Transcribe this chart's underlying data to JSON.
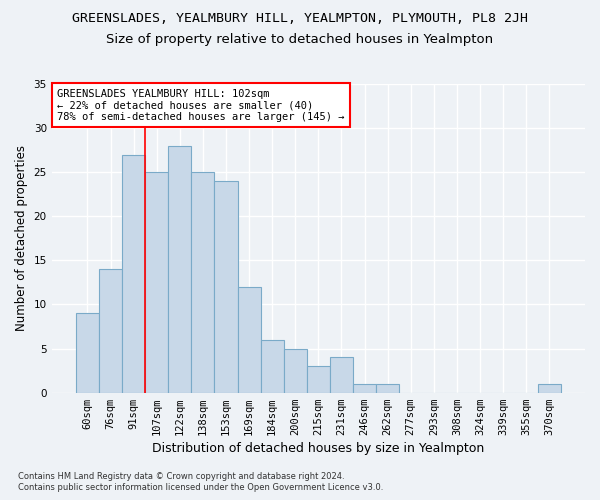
{
  "title": "GREENSLADES, YEALMBURY HILL, YEALMPTON, PLYMOUTH, PL8 2JH",
  "subtitle": "Size of property relative to detached houses in Yealmpton",
  "xlabel": "Distribution of detached houses by size in Yealmpton",
  "ylabel": "Number of detached properties",
  "bar_labels": [
    "60sqm",
    "76sqm",
    "91sqm",
    "107sqm",
    "122sqm",
    "138sqm",
    "153sqm",
    "169sqm",
    "184sqm",
    "200sqm",
    "215sqm",
    "231sqm",
    "246sqm",
    "262sqm",
    "277sqm",
    "293sqm",
    "308sqm",
    "324sqm",
    "339sqm",
    "355sqm",
    "370sqm"
  ],
  "bar_values": [
    9,
    14,
    27,
    25,
    28,
    25,
    24,
    12,
    6,
    5,
    3,
    4,
    1,
    1,
    0,
    0,
    0,
    0,
    0,
    0,
    1
  ],
  "bar_color": "#c8d8e8",
  "bar_edgecolor": "#7aaac8",
  "bar_linewidth": 0.8,
  "redline_x": 2.5,
  "annotation_text": "GREENSLADES YEALMBURY HILL: 102sqm\n← 22% of detached houses are smaller (40)\n78% of semi-detached houses are larger (145) →",
  "annotation_box_color": "white",
  "annotation_box_edgecolor": "red",
  "title_fontsize": 9.5,
  "subtitle_fontsize": 9.5,
  "xlabel_fontsize": 9,
  "ylabel_fontsize": 8.5,
  "tick_fontsize": 7.5,
  "annotation_fontsize": 7.5,
  "footer1": "Contains HM Land Registry data © Crown copyright and database right 2024.",
  "footer2": "Contains public sector information licensed under the Open Government Licence v3.0.",
  "ylim": [
    0,
    35
  ],
  "yticks": [
    0,
    5,
    10,
    15,
    20,
    25,
    30,
    35
  ],
  "background_color": "#eef2f6",
  "plot_bg_color": "#eef2f6",
  "grid_color": "white"
}
